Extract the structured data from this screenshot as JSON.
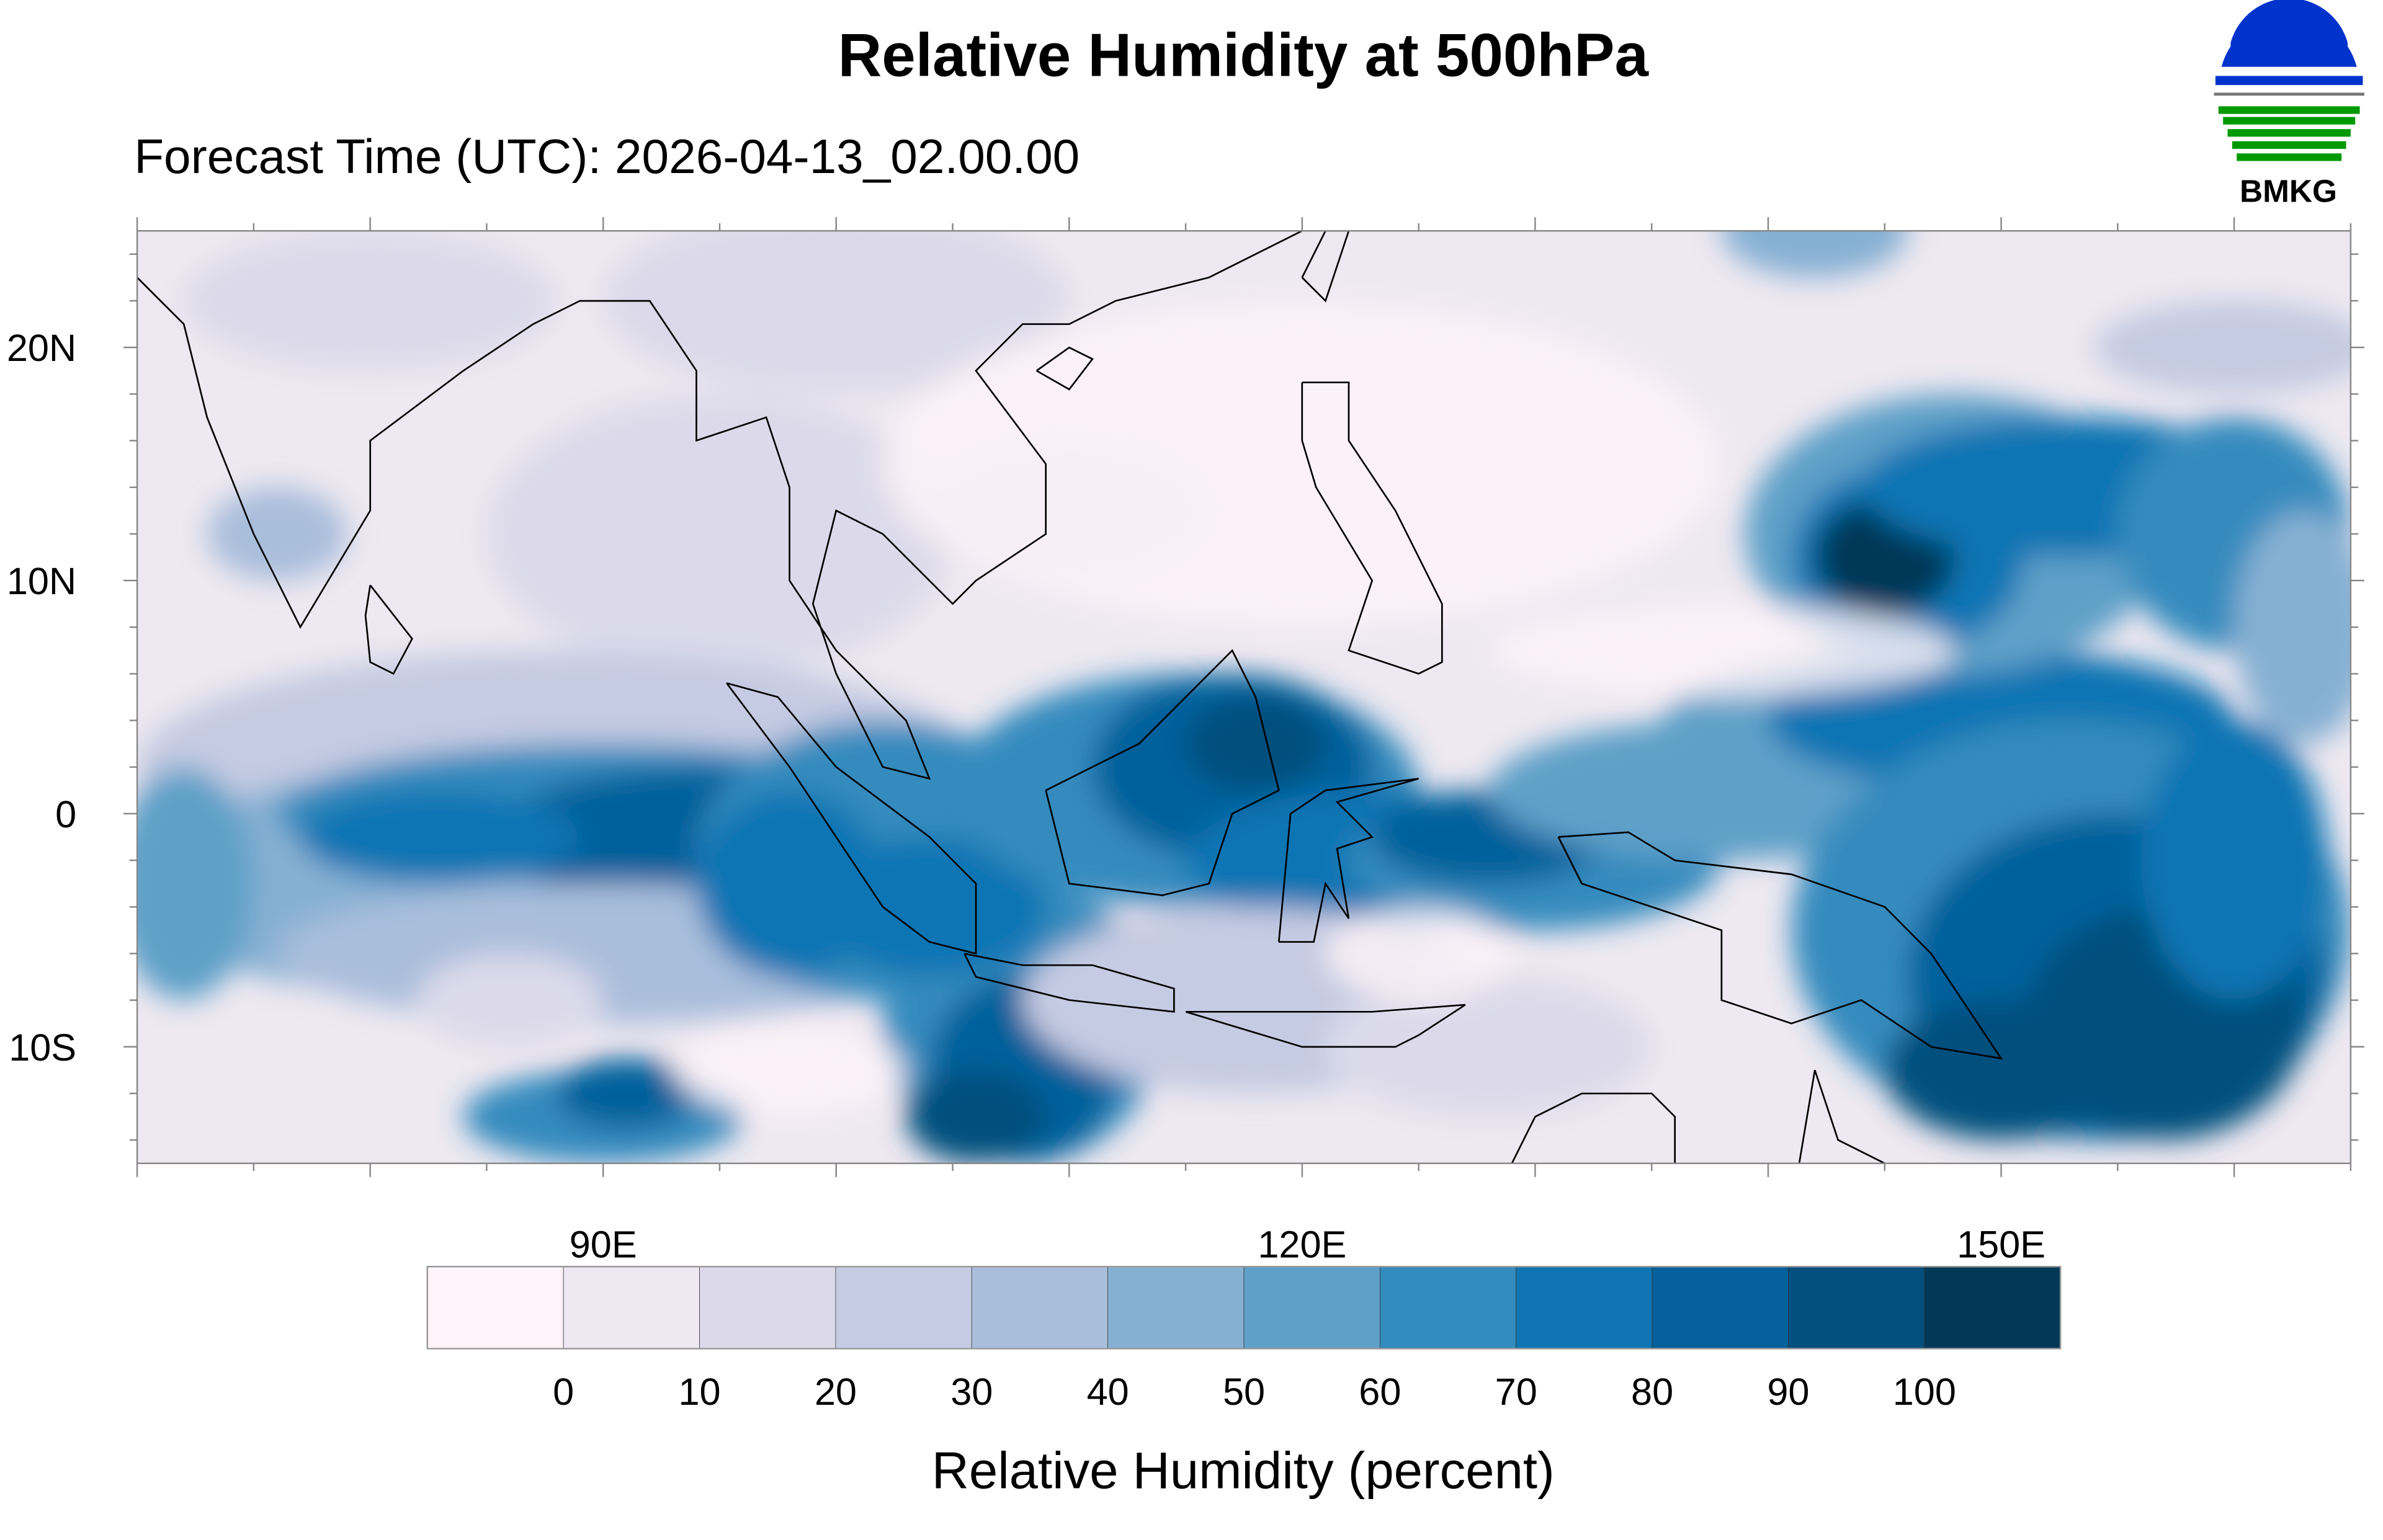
{
  "title": "Relative Humidity at 500hPa",
  "subtitle": "Forecast Time (UTC): 2026-04-13_02.00.00",
  "logo": {
    "text": "BMKG",
    "colors": {
      "blue": "#0033cc",
      "green": "#009900",
      "gray": "#777777"
    }
  },
  "chart_data": {
    "type": "heatmap",
    "title": "Relative Humidity at 500hPa",
    "variable": "Relative Humidity",
    "units": "percent",
    "projection": "cylindrical equidistant",
    "lon_range": [
      70,
      165
    ],
    "lat_range": [
      -15,
      25
    ],
    "x_ticks": [
      {
        "value": 90,
        "label": "90E"
      },
      {
        "value": 120,
        "label": "120E"
      },
      {
        "value": 150,
        "label": "150E"
      }
    ],
    "y_ticks": [
      {
        "value": 20,
        "label": "20N"
      },
      {
        "value": 10,
        "label": "10N"
      },
      {
        "value": 0,
        "label": "0"
      },
      {
        "value": -10,
        "label": "10S"
      }
    ],
    "colorbar": {
      "title": "Relative Humidity (percent)",
      "levels": [
        "0",
        "10",
        "20",
        "30",
        "40",
        "50",
        "60",
        "70",
        "80",
        "90",
        "100"
      ],
      "colors": [
        "#fff4f9",
        "#ede8f1",
        "#dcdaea",
        "#c5cbe2",
        "#a9bedb",
        "#86b0d3",
        "#5fa0c8",
        "#348bbe",
        "#0f75b3",
        "#06609b",
        "#034f7d",
        "#023858"
      ]
    }
  }
}
